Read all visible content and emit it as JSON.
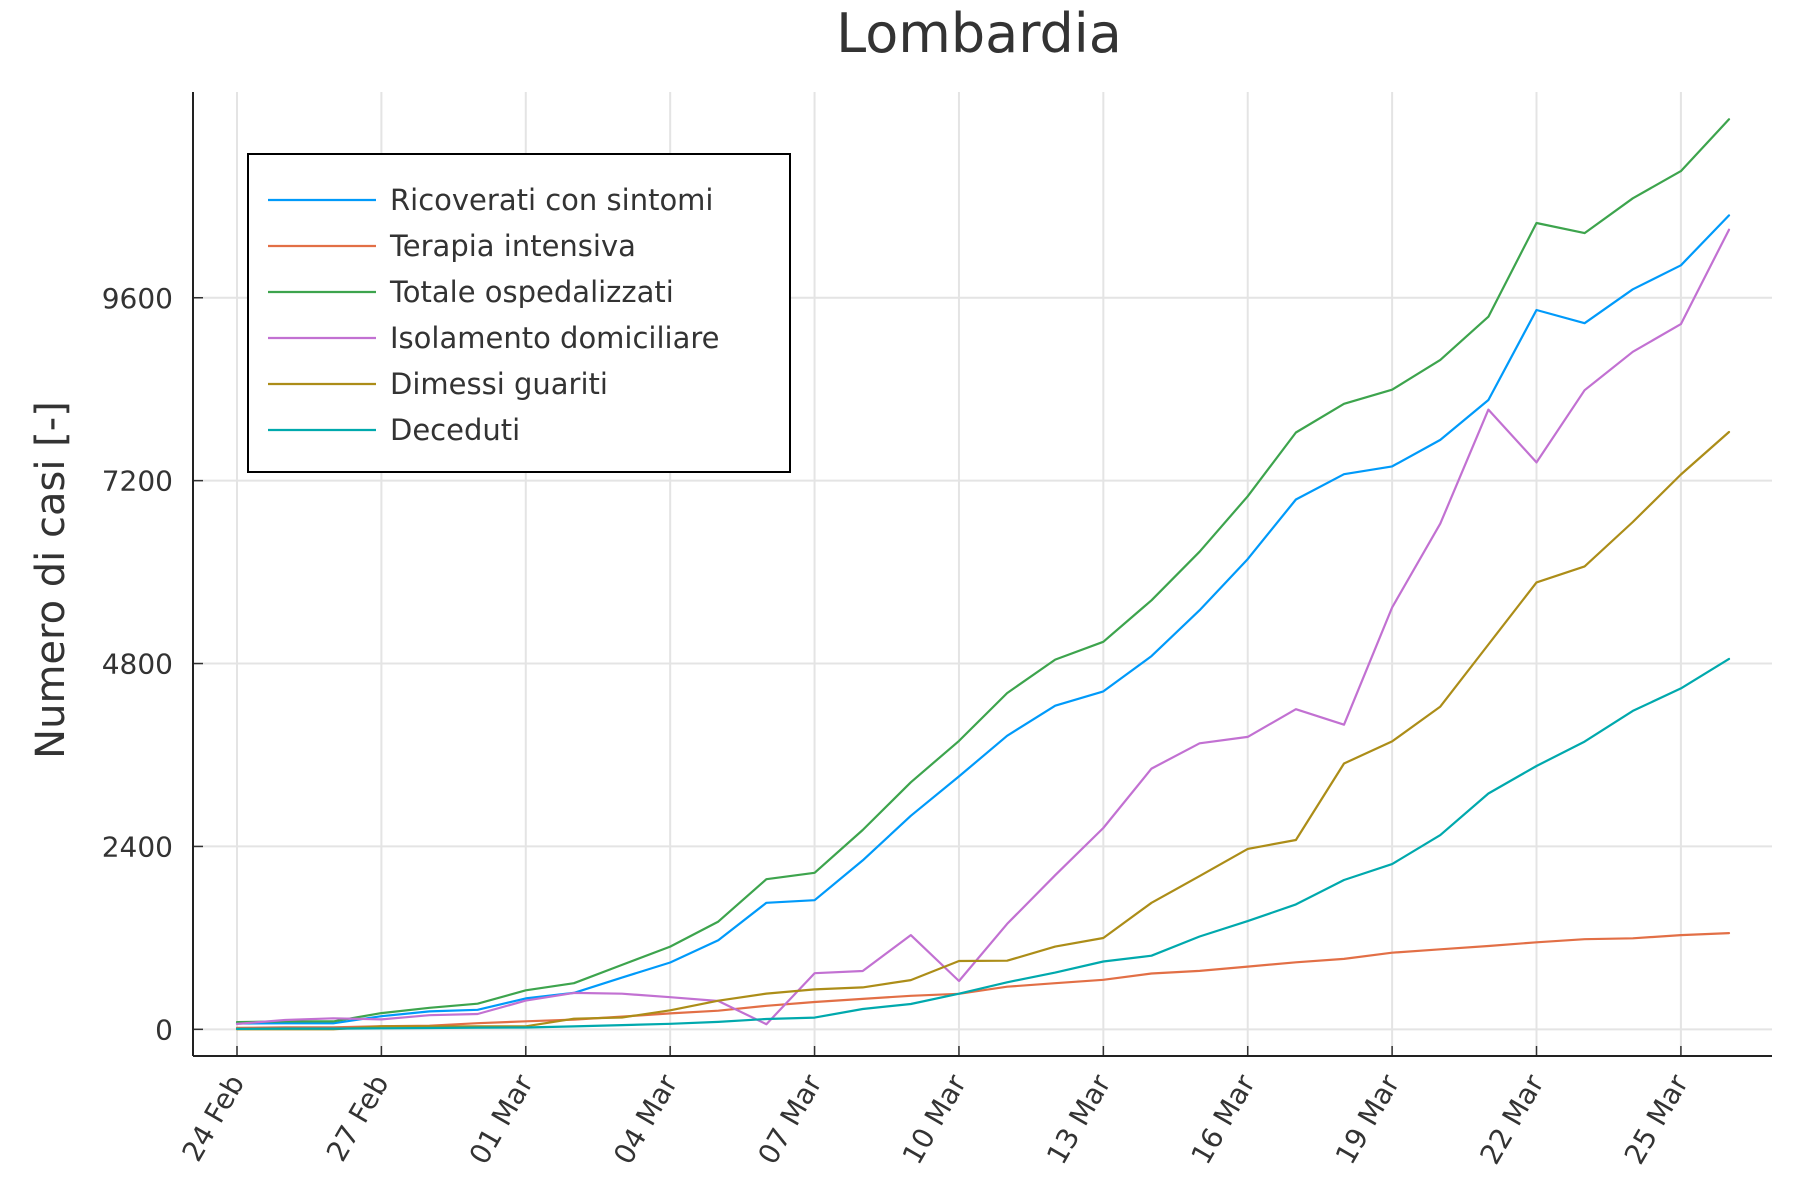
{
  "chart_data": {
    "type": "line",
    "title": "Lombardia",
    "xlabel": "",
    "ylabel": "Numero di casi [-]",
    "x": [
      "24 Feb",
      "25 Feb",
      "26 Feb",
      "27 Feb",
      "28 Feb",
      "29 Feb",
      "01 Mar",
      "02 Mar",
      "03 Mar",
      "04 Mar",
      "05 Mar",
      "06 Mar",
      "07 Mar",
      "08 Mar",
      "09 Mar",
      "10 Mar",
      "11 Mar",
      "12 Mar",
      "13 Mar",
      "14 Mar",
      "15 Mar",
      "16 Mar",
      "17 Mar",
      "18 Mar",
      "19 Mar",
      "20 Mar",
      "21 Mar",
      "22 Mar",
      "23 Mar",
      "24 Mar",
      "25 Mar",
      "26 Mar"
    ],
    "x_ticks": [
      "24 Feb",
      "27 Feb",
      "01 Mar",
      "04 Mar",
      "07 Mar",
      "10 Mar",
      "13 Mar",
      "16 Mar",
      "19 Mar",
      "22 Mar",
      "25 Mar"
    ],
    "x_tick_indices": [
      0,
      3,
      6,
      9,
      12,
      15,
      18,
      21,
      24,
      27,
      30
    ],
    "y_ticks": [
      0,
      2400,
      4800,
      7200,
      9600
    ],
    "ylim": [
      -350,
      12300
    ],
    "grid": true,
    "legend_position": "top-left",
    "series": [
      {
        "name": "Ricoverati con sintomi",
        "color": "#009AFA",
        "values": [
          76,
          79,
          79,
          172,
          235,
          256,
          406,
          478,
          679,
          877,
          1169,
          1661,
          1695,
          2217,
          2802,
          3319,
          3852,
          4247,
          4435,
          4898,
          5500,
          6171,
          6953,
          7285,
          7387,
          7735,
          8258,
          9439,
          9266,
          9711,
          10026,
          10681
        ]
      },
      {
        "name": "Terapia intensiva",
        "color": "#E26F46",
        "values": [
          19,
          25,
          25,
          41,
          47,
          80,
          106,
          127,
          167,
          209,
          244,
          309,
          359,
          399,
          440,
          466,
          560,
          605,
          650,
          732,
          767,
          823,
          879,
          924,
          1006,
          1050,
          1093,
          1142,
          1183,
          1194,
          1236,
          1263
        ]
      },
      {
        "name": "Totale ospedalizzati",
        "color": "#3DA44D",
        "values": [
          95,
          104,
          104,
          213,
          282,
          336,
          512,
          605,
          846,
          1086,
          1413,
          1970,
          2054,
          2616,
          3242,
          3785,
          4412,
          4852,
          5085,
          5630,
          6267,
          6994,
          7832,
          8209,
          8393,
          8785,
          9351,
          10581,
          10449,
          10905,
          11262,
          11942
        ]
      },
      {
        "name": "Isolamento domiciliare",
        "color": "#C271D2",
        "values": [
          71,
          123,
          145,
          130,
          185,
          201,
          377,
          478,
          467,
          422,
          372,
          67,
          736,
          766,
          1237,
          634,
          1384,
          2023,
          2642,
          3421,
          3753,
          3838,
          4201,
          3997,
          5536,
          6636,
          8132,
          7439,
          8387,
          8891,
          9254,
          10493
        ]
      },
      {
        "name": "Dimessi guariti",
        "color": "#AC8D18",
        "values": [
          0,
          0,
          0,
          40,
          40,
          40,
          40,
          140,
          155,
          250,
          376,
          469,
          524,
          550,
          646,
          896,
          900,
          1085,
          1198,
          1660,
          2011,
          2368,
          2485,
          3488,
          3778,
          4235,
          5050,
          5865,
          6075,
          6657,
          7281,
          7839
        ]
      },
      {
        "name": "Deceduti",
        "color": "#00A9AD",
        "values": [
          6,
          9,
          9,
          14,
          17,
          23,
          24,
          38,
          55,
          73,
          98,
          135,
          154,
          267,
          333,
          468,
          617,
          744,
          890,
          966,
          1218,
          1420,
          1640,
          1959,
          2168,
          2549,
          3095,
          3456,
          3776,
          4178,
          4474,
          4861
        ]
      }
    ]
  }
}
